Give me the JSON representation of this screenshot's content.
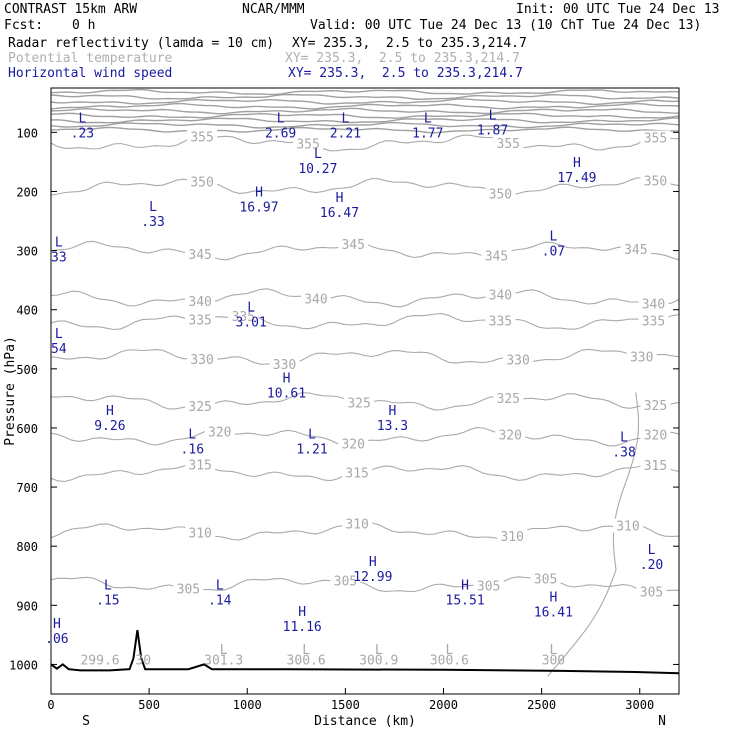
{
  "header": {
    "model": "CONTRAST 15km ARW",
    "org": "NCAR/MMM",
    "init": "Init: 00 UTC Tue 24 Dec 13",
    "fcst_label": "Fcst:",
    "fcst_value": "0 h",
    "valid": "Valid: 00 UTC Tue 24 Dec 13 (10 ChT Tue 24 Dec 13)",
    "fields": [
      {
        "name": "Radar reflectivity (lamda = 10 cm)",
        "xy": "XY= 235.3,  2.5 to 235.3,214.7",
        "color": "#000000"
      },
      {
        "name": "Potential temperature",
        "xy": "XY= 235.3,  2.5 to 235.3,214.7",
        "color": "#b0b0b0"
      },
      {
        "name": "Horizontal wind speed",
        "xy": "XY= 235.3,  2.5 to 235.3,214.7",
        "color": "#1a1aa0"
      }
    ]
  },
  "chart_data": {
    "type": "contour-cross-section",
    "xlabel": "Distance (km)",
    "ylabel": "Pressure (hPa)",
    "xlim": [
      0,
      3200
    ],
    "ylim": [
      1050,
      25
    ],
    "x_ticks": [
      0,
      500,
      1000,
      1500,
      2000,
      2500,
      3000
    ],
    "y_ticks": [
      100,
      200,
      300,
      400,
      500,
      600,
      700,
      800,
      900,
      1000
    ],
    "x_end_labels": {
      "left": "S",
      "right": "N"
    },
    "theta_levels": [
      {
        "value": 355,
        "p": 118,
        "labels": [
          {
            "x": 770,
            "text": "355"
          },
          {
            "x": 1310,
            "text": "355"
          },
          {
            "x": 2330,
            "text": "355"
          },
          {
            "x": 3080,
            "text": "355"
          }
        ]
      },
      {
        "value": 350,
        "p": 192,
        "labels": [
          {
            "x": 770,
            "text": "350"
          },
          {
            "x": 2290,
            "text": "350"
          },
          {
            "x": 3080,
            "text": "350"
          }
        ]
      },
      {
        "value": 345,
        "p": 300,
        "labels": [
          {
            "x": 760,
            "text": "345"
          },
          {
            "x": 1540,
            "text": "345"
          },
          {
            "x": 2270,
            "text": "345"
          },
          {
            "x": 2980,
            "text": "345"
          }
        ]
      },
      {
        "value": 340,
        "p": 380,
        "labels": [
          {
            "x": 760,
            "text": "340"
          },
          {
            "x": 1350,
            "text": "340"
          },
          {
            "x": 2290,
            "text": "340"
          },
          {
            "x": 3070,
            "text": "340"
          }
        ]
      },
      {
        "value": 335,
        "p": 420,
        "labels": [
          {
            "x": 760,
            "text": "335"
          },
          {
            "x": 980,
            "text": "335"
          },
          {
            "x": 2290,
            "text": "335"
          },
          {
            "x": 3070,
            "text": "335"
          }
        ]
      },
      {
        "value": 330,
        "p": 480,
        "labels": [
          {
            "x": 770,
            "text": "330"
          },
          {
            "x": 1190,
            "text": "330"
          },
          {
            "x": 2380,
            "text": "330"
          },
          {
            "x": 3010,
            "text": "330"
          }
        ]
      },
      {
        "value": 325,
        "p": 555,
        "labels": [
          {
            "x": 760,
            "text": "325"
          },
          {
            "x": 1570,
            "text": "325"
          },
          {
            "x": 2330,
            "text": "325"
          },
          {
            "x": 3080,
            "text": "325"
          }
        ]
      },
      {
        "value": 320,
        "p": 615,
        "labels": [
          {
            "x": 860,
            "text": "320"
          },
          {
            "x": 1540,
            "text": "320"
          },
          {
            "x": 2340,
            "text": "320"
          },
          {
            "x": 3080,
            "text": "320"
          }
        ]
      },
      {
        "value": 315,
        "p": 675,
        "labels": [
          {
            "x": 760,
            "text": "315"
          },
          {
            "x": 1560,
            "text": "315"
          },
          {
            "x": 3080,
            "text": "315"
          }
        ]
      },
      {
        "value": 310,
        "p": 775,
        "labels": [
          {
            "x": 760,
            "text": "310"
          },
          {
            "x": 1560,
            "text": "310"
          },
          {
            "x": 2350,
            "text": "310"
          },
          {
            "x": 2940,
            "text": "310"
          }
        ]
      },
      {
        "value": 305,
        "p": 865,
        "labels": [
          {
            "x": 700,
            "text": "305"
          },
          {
            "x": 1500,
            "text": "305"
          },
          {
            "x": 2230,
            "text": "305"
          },
          {
            "x": 2520,
            "text": "305"
          },
          {
            "x": 3060,
            "text": "305"
          }
        ]
      }
    ],
    "surface_theta_labels": [
      {
        "x": 250,
        "text": "299.6",
        "marker": ""
      },
      {
        "x": 470,
        "text": "30",
        "marker": ""
      },
      {
        "x": 880,
        "text": "301.3",
        "marker": "L"
      },
      {
        "x": 1300,
        "text": "300.6",
        "marker": "L"
      },
      {
        "x": 1670,
        "text": "300.9",
        "marker": "L"
      },
      {
        "x": 2030,
        "text": "300.6",
        "marker": "L"
      },
      {
        "x": 2560,
        "text": "300",
        "marker": "L"
      }
    ],
    "wind_extrema": [
      {
        "type": "L",
        "x": 160,
        "p": 90,
        "value": ".23"
      },
      {
        "type": "L",
        "x": 1170,
        "p": 90,
        "value": "2.69"
      },
      {
        "type": "L",
        "x": 1500,
        "p": 90,
        "value": "2.21"
      },
      {
        "type": "L",
        "x": 1920,
        "p": 90,
        "value": "1.77"
      },
      {
        "type": "L",
        "x": 2250,
        "p": 85,
        "value": "1.87"
      },
      {
        "type": "L",
        "x": 1360,
        "p": 150,
        "value": "10.27"
      },
      {
        "type": "H",
        "x": 2680,
        "p": 165,
        "value": "17.49"
      },
      {
        "type": "H",
        "x": 1060,
        "p": 215,
        "value": "16.97"
      },
      {
        "type": "H",
        "x": 1470,
        "p": 225,
        "value": "16.47"
      },
      {
        "type": "L",
        "x": 520,
        "p": 240,
        "value": ".33"
      },
      {
        "type": "L",
        "x": 2560,
        "p": 290,
        "value": ".07"
      },
      {
        "type": "L",
        "x": 40,
        "p": 300,
        "value": "33"
      },
      {
        "type": "L",
        "x": 1020,
        "p": 410,
        "value": "3.01"
      },
      {
        "type": "L",
        "x": 40,
        "p": 455,
        "value": "54"
      },
      {
        "type": "H",
        "x": 1200,
        "p": 530,
        "value": "10.61"
      },
      {
        "type": "H",
        "x": 300,
        "p": 585,
        "value": "9.26"
      },
      {
        "type": "H",
        "x": 1740,
        "p": 585,
        "value": "13.3"
      },
      {
        "type": "L",
        "x": 720,
        "p": 625,
        "value": ".16"
      },
      {
        "type": "L",
        "x": 1330,
        "p": 625,
        "value": "1.21"
      },
      {
        "type": "L",
        "x": 2920,
        "p": 630,
        "value": ".38"
      },
      {
        "type": "L",
        "x": 3060,
        "p": 820,
        "value": ".20"
      },
      {
        "type": "H",
        "x": 1640,
        "p": 840,
        "value": "12.99"
      },
      {
        "type": "L",
        "x": 290,
        "p": 880,
        "value": ".15"
      },
      {
        "type": "L",
        "x": 860,
        "p": 880,
        "value": ".14"
      },
      {
        "type": "H",
        "x": 2110,
        "p": 880,
        "value": "15.51"
      },
      {
        "type": "H",
        "x": 2560,
        "p": 900,
        "value": "16.41"
      },
      {
        "type": "H",
        "x": 1280,
        "p": 925,
        "value": "11.16"
      },
      {
        "type": "H",
        "x": 30,
        "p": 945,
        "value": ".06"
      }
    ],
    "terrain": [
      [
        0,
        1000
      ],
      [
        30,
        1007
      ],
      [
        60,
        1000
      ],
      [
        90,
        1008
      ],
      [
        150,
        1010
      ],
      [
        300,
        1010
      ],
      [
        400,
        1008
      ],
      [
        420,
        990
      ],
      [
        440,
        942
      ],
      [
        460,
        990
      ],
      [
        480,
        1008
      ],
      [
        700,
        1008
      ],
      [
        780,
        1000
      ],
      [
        820,
        1008
      ],
      [
        1200,
        1008
      ],
      [
        2000,
        1009
      ],
      [
        2600,
        1011
      ],
      [
        3000,
        1013
      ],
      [
        3200,
        1015
      ]
    ]
  }
}
